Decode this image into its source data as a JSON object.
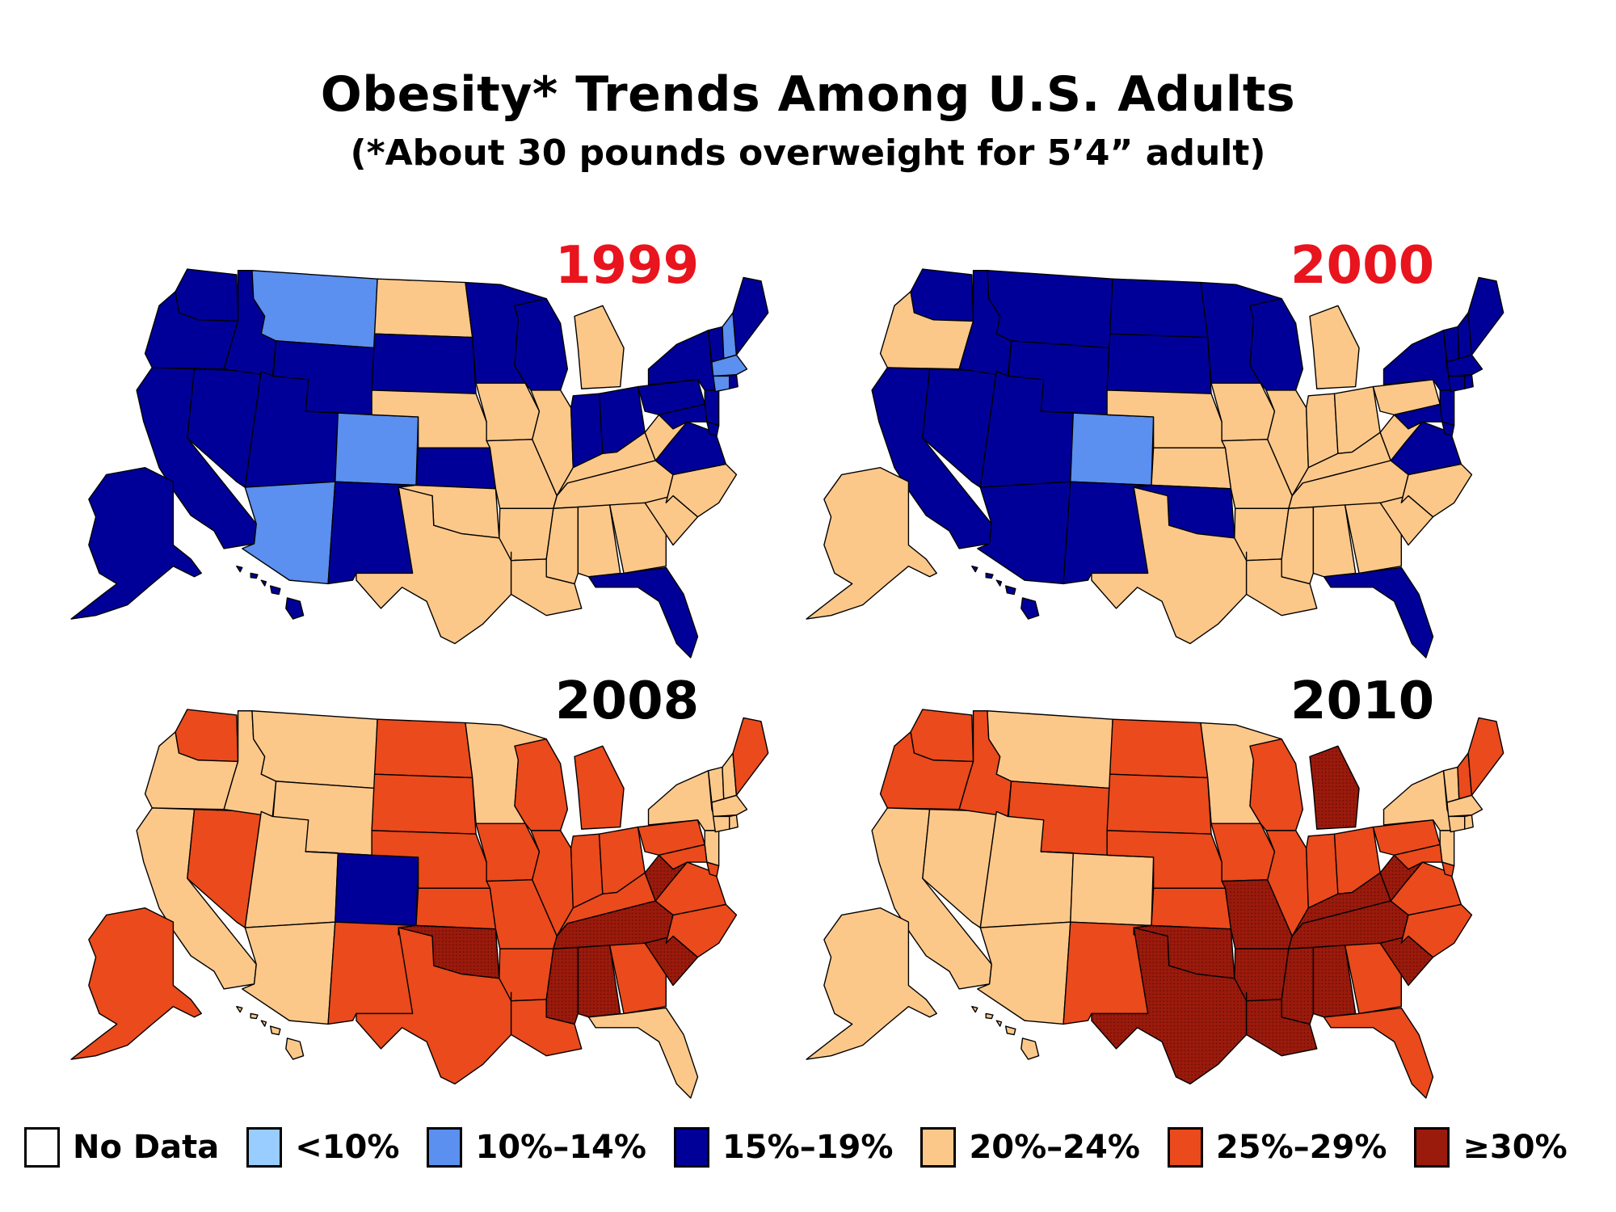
{
  "title": "Obesity* Trends Among U.S. Adults",
  "subtitle": "(*About 30 pounds overweight for 5’4” adult)",
  "colors": {
    "no_data": "#ffffff",
    "lt10": "#99ccff",
    "c10_14": "#5b8ff0",
    "c15_19": "#000099",
    "c20_24": "#fcc88a",
    "c25_29": "#ea4a1c",
    "ge30": "#9a1a0c",
    "year_red": "#e8141e",
    "year_black": "#000000"
  },
  "legend": [
    {
      "label": "No Data",
      "color_key": "no_data"
    },
    {
      "label": "<10%",
      "color_key": "lt10"
    },
    {
      "label": "10%–14%",
      "color_key": "c10_14"
    },
    {
      "label": "15%–19%",
      "color_key": "c15_19"
    },
    {
      "label": "20%–24%",
      "color_key": "c20_24"
    },
    {
      "label": "25%–29%",
      "color_key": "c25_29"
    },
    {
      "label": "≥30%",
      "color_key": "ge30"
    }
  ],
  "maps": [
    {
      "year": "1999",
      "year_color_key": "year_red",
      "states": {
        "WA": "c15_19",
        "OR": "c15_19",
        "CA": "c15_19",
        "NV": "c15_19",
        "ID": "c15_19",
        "MT": "c10_14",
        "WY": "c15_19",
        "UT": "c15_19",
        "AZ": "c10_14",
        "CO": "c10_14",
        "NM": "c15_19",
        "ND": "c20_24",
        "SD": "c15_19",
        "NE": "c20_24",
        "KS": "c15_19",
        "OK": "c20_24",
        "TX": "c20_24",
        "MN": "c15_19",
        "IA": "c20_24",
        "MO": "c20_24",
        "AR": "c20_24",
        "LA": "c20_24",
        "WI": "c15_19",
        "IL": "c20_24",
        "MI": "c20_24",
        "IN": "c15_19",
        "OH": "c15_19",
        "KY": "c20_24",
        "TN": "c20_24",
        "MS": "c20_24",
        "AL": "c20_24",
        "GA": "c20_24",
        "FL": "c15_19",
        "SC": "c20_24",
        "NC": "c20_24",
        "VA": "c15_19",
        "WV": "c20_24",
        "PA": "c15_19",
        "NY": "c15_19",
        "NJ": "c15_19",
        "MD": "c15_19",
        "DE": "c15_19",
        "VT": "c15_19",
        "NH": "c10_14",
        "ME": "c15_19",
        "MA": "c10_14",
        "CT": "c10_14",
        "RI": "c15_19",
        "AK": "c15_19",
        "HI": "c15_19"
      }
    },
    {
      "year": "2000",
      "year_color_key": "year_red",
      "states": {
        "WA": "c15_19",
        "OR": "c20_24",
        "CA": "c15_19",
        "NV": "c15_19",
        "ID": "c15_19",
        "MT": "c15_19",
        "WY": "c15_19",
        "UT": "c15_19",
        "AZ": "c15_19",
        "CO": "c10_14",
        "NM": "c15_19",
        "ND": "c15_19",
        "SD": "c15_19",
        "NE": "c20_24",
        "KS": "c20_24",
        "OK": "c15_19",
        "TX": "c20_24",
        "MN": "c15_19",
        "IA": "c20_24",
        "MO": "c20_24",
        "AR": "c20_24",
        "LA": "c20_24",
        "WI": "c15_19",
        "IL": "c20_24",
        "MI": "c20_24",
        "IN": "c20_24",
        "OH": "c20_24",
        "KY": "c20_24",
        "TN": "c20_24",
        "MS": "c20_24",
        "AL": "c20_24",
        "GA": "c20_24",
        "FL": "c15_19",
        "SC": "c20_24",
        "NC": "c20_24",
        "VA": "c15_19",
        "WV": "c20_24",
        "PA": "c20_24",
        "NY": "c15_19",
        "NJ": "c15_19",
        "MD": "c15_19",
        "DE": "c15_19",
        "VT": "c15_19",
        "NH": "c15_19",
        "ME": "c15_19",
        "MA": "c15_19",
        "CT": "c15_19",
        "RI": "c15_19",
        "AK": "c20_24",
        "HI": "c15_19"
      }
    },
    {
      "year": "2008",
      "year_color_key": "year_black",
      "states": {
        "WA": "c25_29",
        "OR": "c20_24",
        "CA": "c20_24",
        "NV": "c25_29",
        "ID": "c20_24",
        "MT": "c20_24",
        "WY": "c20_24",
        "UT": "c20_24",
        "AZ": "c20_24",
        "CO": "c15_19",
        "NM": "c25_29",
        "ND": "c25_29",
        "SD": "c25_29",
        "NE": "c25_29",
        "KS": "c25_29",
        "OK": "ge30",
        "TX": "c25_29",
        "MN": "c20_24",
        "IA": "c25_29",
        "MO": "c25_29",
        "AR": "c25_29",
        "LA": "c25_29",
        "WI": "c25_29",
        "IL": "c25_29",
        "MI": "c25_29",
        "IN": "c25_29",
        "OH": "c25_29",
        "KY": "c25_29",
        "TN": "ge30",
        "MS": "ge30",
        "AL": "ge30",
        "GA": "c25_29",
        "FL": "c20_24",
        "SC": "ge30",
        "NC": "c25_29",
        "VA": "c25_29",
        "WV": "ge30",
        "PA": "c25_29",
        "NY": "c20_24",
        "NJ": "c20_24",
        "MD": "c25_29",
        "DE": "c25_29",
        "VT": "c20_24",
        "NH": "c20_24",
        "ME": "c25_29",
        "MA": "c20_24",
        "CT": "c20_24",
        "RI": "c20_24",
        "AK": "c25_29",
        "HI": "c20_24"
      }
    },
    {
      "year": "2010",
      "year_color_key": "year_black",
      "states": {
        "WA": "c25_29",
        "OR": "c25_29",
        "CA": "c20_24",
        "NV": "c20_24",
        "ID": "c25_29",
        "MT": "c20_24",
        "WY": "c25_29",
        "UT": "c20_24",
        "AZ": "c20_24",
        "CO": "c20_24",
        "NM": "c25_29",
        "ND": "c25_29",
        "SD": "c25_29",
        "NE": "c25_29",
        "KS": "c25_29",
        "OK": "ge30",
        "TX": "ge30",
        "MN": "c20_24",
        "IA": "c25_29",
        "MO": "ge30",
        "AR": "ge30",
        "LA": "ge30",
        "WI": "c25_29",
        "IL": "c25_29",
        "MI": "ge30",
        "IN": "c25_29",
        "OH": "c25_29",
        "KY": "ge30",
        "TN": "ge30",
        "MS": "ge30",
        "AL": "ge30",
        "GA": "c25_29",
        "FL": "c25_29",
        "SC": "ge30",
        "NC": "c25_29",
        "VA": "c25_29",
        "WV": "ge30",
        "PA": "c25_29",
        "NY": "c20_24",
        "NJ": "c20_24",
        "MD": "c25_29",
        "DE": "c25_29",
        "VT": "c20_24",
        "NH": "c25_29",
        "ME": "c25_29",
        "MA": "c20_24",
        "CT": "c20_24",
        "RI": "c20_24",
        "AK": "c20_24",
        "HI": "c20_24"
      }
    }
  ]
}
